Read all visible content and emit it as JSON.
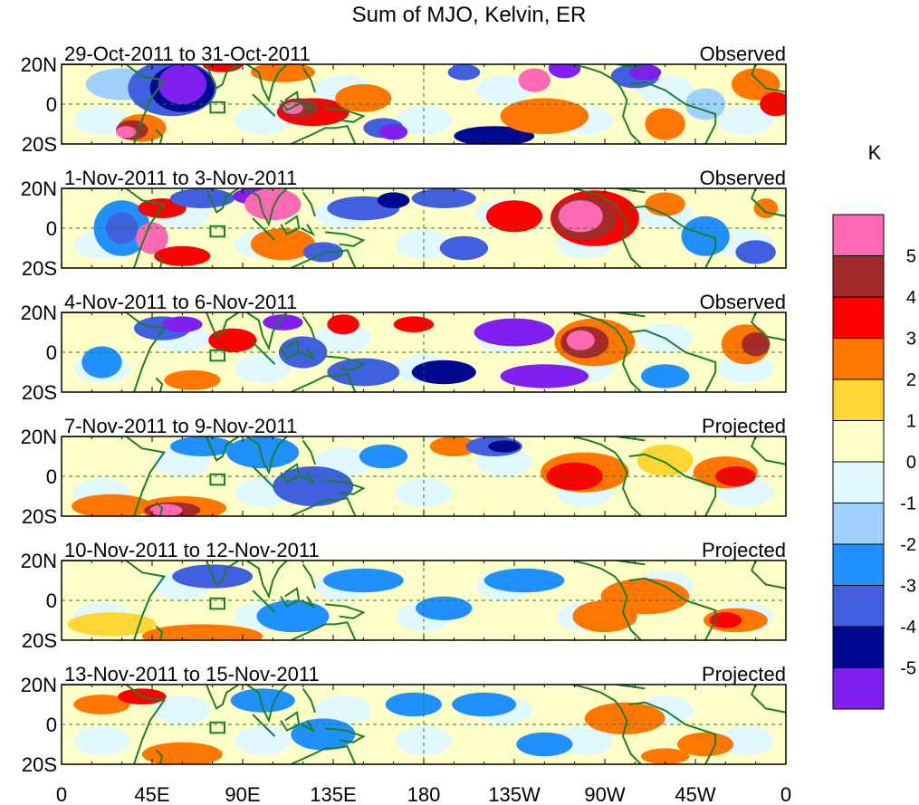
{
  "chart_data": {
    "type": "heatmap",
    "title": "Sum of MJO, Kelvin, ER",
    "xlabel": "",
    "ylabel": "",
    "x_ticks": [
      "0",
      "45E",
      "90E",
      "135E",
      "180",
      "135W",
      "90W",
      "45W",
      "0"
    ],
    "x_tick_lons": [
      0,
      45,
      90,
      135,
      180,
      225,
      270,
      315,
      360
    ],
    "y_ticks": [
      "20N",
      "0",
      "20S"
    ],
    "y_tick_lats": [
      20,
      0,
      -20
    ],
    "xlim": [
      0,
      360
    ],
    "ylim": [
      -20,
      20
    ],
    "panels": [
      {
        "date_range": "29-Oct-2011 to 31-Oct-2011",
        "status": "Observed"
      },
      {
        "date_range": "1-Nov-2011 to 3-Nov-2011",
        "status": "Observed"
      },
      {
        "date_range": "4-Nov-2011 to 6-Nov-2011",
        "status": "Observed"
      },
      {
        "date_range": "7-Nov-2011 to 9-Nov-2011",
        "status": "Projected"
      },
      {
        "date_range": "10-Nov-2011 to 12-Nov-2011",
        "status": "Projected"
      },
      {
        "date_range": "13-Nov-2011 to 15-Nov-2011",
        "status": "Projected"
      }
    ],
    "colorbar": {
      "unit": "K",
      "tick_labels": [
        "5",
        "4",
        "3",
        "2",
        "1",
        "0",
        "-1",
        "-2",
        "-3",
        "-4",
        "-5"
      ],
      "colors": [
        "#ff69b4",
        "#a52a2a",
        "#ff0000",
        "#ff7700",
        "#ffd633",
        "#ffffc8",
        "#e0f8ff",
        "#a0d0ff",
        "#2090ff",
        "#4060e0",
        "#000a90",
        "#8020f0"
      ]
    }
  }
}
